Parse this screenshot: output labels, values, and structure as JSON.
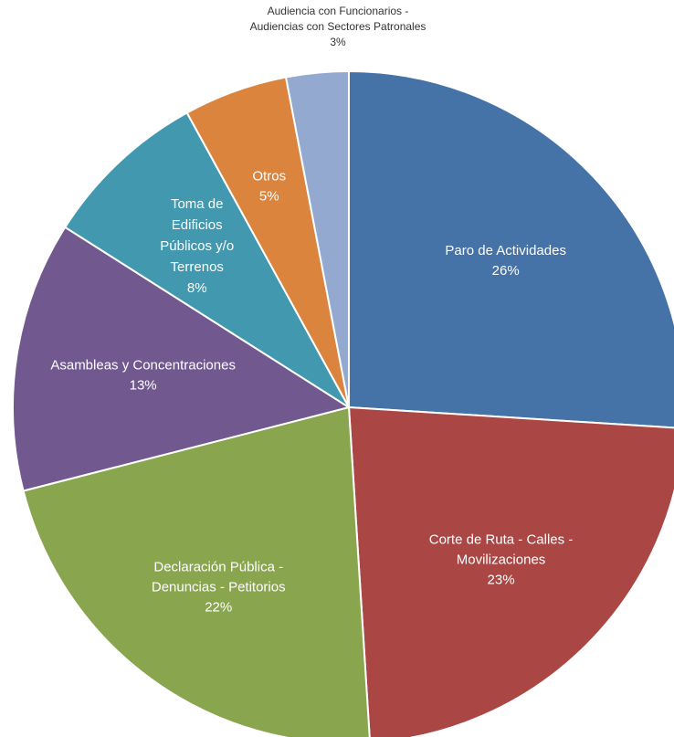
{
  "chart_data": {
    "type": "pie",
    "categories": [
      "Paro de Actividades",
      "Corte de Ruta - Calles - Movilizaciones",
      "Declaración Pública - Denuncias - Petitorios",
      "Asambleas y Concentraciones",
      "Toma de Edificios Públicos y/o Terrenos",
      "Otros",
      "Audiencia con Funcionarios - Audiencias con Sectores Patronales"
    ],
    "values": [
      26,
      23,
      22,
      13,
      8,
      5,
      3
    ],
    "value_labels": [
      "26%",
      "23%",
      "22%",
      "13%",
      "8%",
      "5%",
      "3%"
    ],
    "label_lines": [
      [
        "Paro de Actividades"
      ],
      [
        "Corte de Ruta - Calles -",
        "Movilizaciones"
      ],
      [
        "Declaración Pública -",
        "Denuncias - Petitorios"
      ],
      [
        "Asambleas y Concentraciones"
      ],
      [
        "Toma de",
        "Edificios",
        "Públicos y/o",
        "Terrenos"
      ],
      [
        "Otros"
      ],
      [
        "Audiencia con Funcionarios -",
        "Audiencias con Sectores Patronales"
      ]
    ],
    "colors": [
      "#4572A7",
      "#AA4643",
      "#89A54E",
      "#71588F",
      "#4198AF",
      "#DB843D",
      "#93A9CF"
    ],
    "label_position": [
      "inside",
      "inside",
      "inside",
      "inside",
      "inside",
      "inside",
      "outside"
    ],
    "legend": "none",
    "start_angle_deg": 0,
    "direction": "clockwise"
  }
}
